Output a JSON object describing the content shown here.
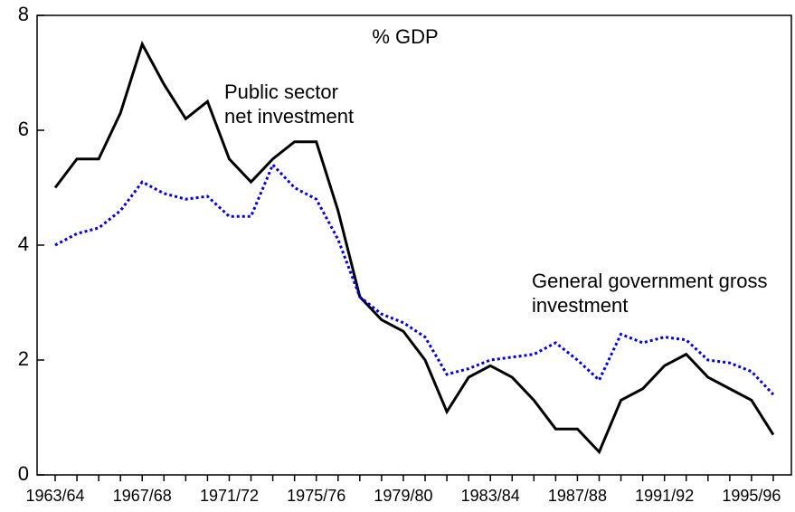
{
  "chart_data": {
    "type": "line",
    "ylabel": "% GDP",
    "categories": [
      "1963/64",
      null,
      null,
      null,
      "1967/68",
      null,
      null,
      null,
      "1971/72",
      null,
      null,
      null,
      "1975/76",
      null,
      null,
      null,
      "1979/80",
      null,
      null,
      null,
      "1983/84",
      null,
      null,
      null,
      "1987/88",
      null,
      null,
      null,
      "1991/92",
      null,
      null,
      null,
      "1995/96",
      null
    ],
    "series": [
      {
        "name": "Public sector net investment",
        "color": "#000000",
        "dash": "solid",
        "values": [
          5.0,
          5.5,
          5.5,
          6.3,
          7.5,
          6.8,
          6.2,
          6.5,
          5.5,
          5.1,
          5.5,
          5.8,
          5.8,
          4.6,
          3.1,
          2.7,
          2.5,
          2.0,
          1.1,
          1.7,
          1.9,
          1.7,
          1.3,
          0.8,
          0.8,
          0.4,
          1.3,
          1.5,
          1.9,
          2.1,
          1.7,
          1.5,
          1.3,
          0.7
        ]
      },
      {
        "name": "General government gross investment",
        "color": "#0000ee",
        "dash": "dotted",
        "values": [
          4.0,
          4.2,
          4.3,
          4.6,
          5.1,
          4.9,
          4.8,
          4.85,
          4.5,
          4.5,
          5.4,
          5.0,
          4.8,
          4.1,
          3.1,
          2.8,
          2.65,
          2.4,
          1.75,
          1.85,
          2.0,
          2.05,
          2.1,
          2.3,
          2.0,
          1.65,
          2.45,
          2.3,
          2.4,
          2.35,
          2.0,
          1.95,
          1.8,
          1.4
        ]
      }
    ],
    "ylim": [
      0,
      8
    ],
    "yticks": [
      0,
      2,
      4,
      6,
      8
    ]
  }
}
